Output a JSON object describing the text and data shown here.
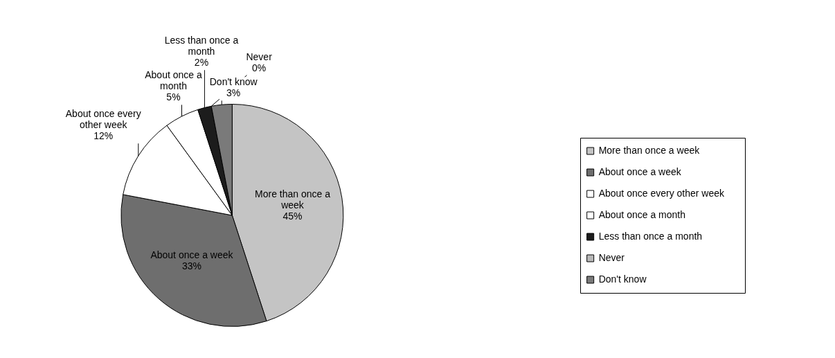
{
  "chart_data": {
    "type": "pie",
    "categories": [
      "More than once a week",
      "About once a week",
      "About once every other week",
      "About once a month",
      "Less than once a month",
      "Never",
      "Don't know"
    ],
    "values": [
      45,
      33,
      12,
      5,
      2,
      0,
      3
    ],
    "value_labels": [
      "45%",
      "33%",
      "12%",
      "5%",
      "2%",
      "0%",
      "3%"
    ],
    "colors": [
      "#c4c4c4",
      "#6e6e6e",
      "#ffffff",
      "#ffffff",
      "#1c1c1c",
      "#b8b8b8",
      "#7a7a7a"
    ],
    "legend": "right"
  }
}
